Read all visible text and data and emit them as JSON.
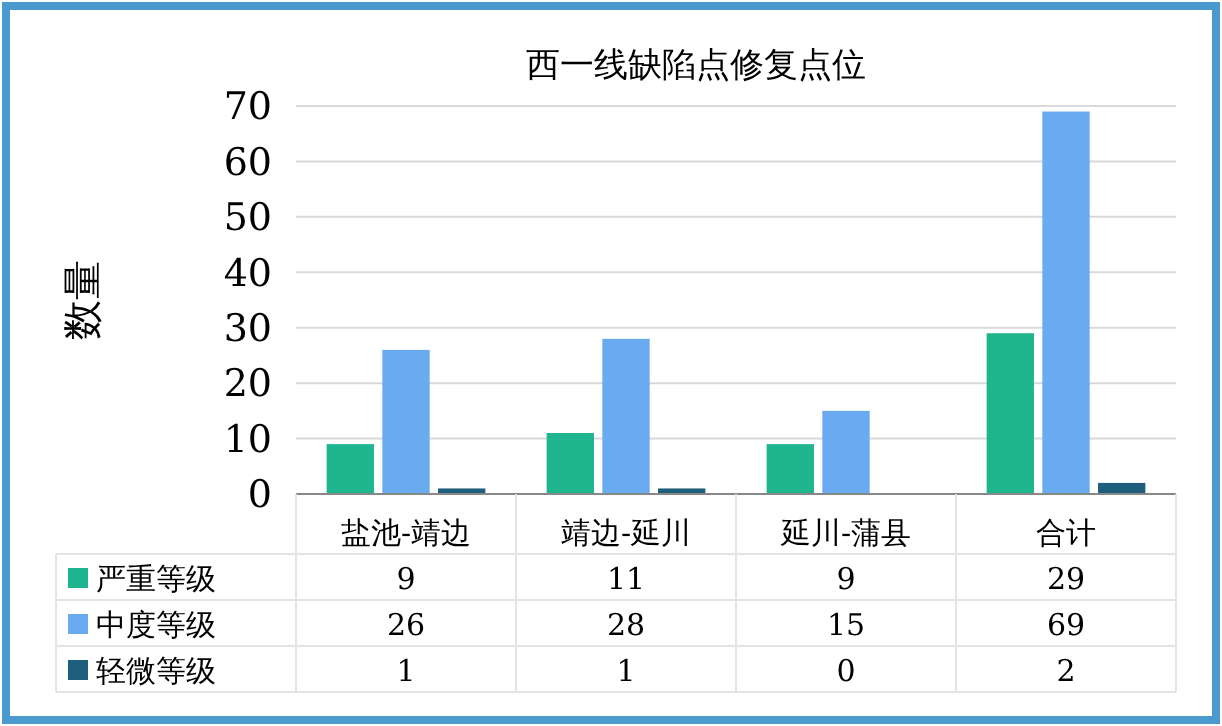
{
  "chart_data": {
    "type": "bar",
    "title": "西一线缺陷点修复点位",
    "ylabel": "数量",
    "categories": [
      "盐池-靖边",
      "靖边-延川",
      "延川-蒲县",
      "合计"
    ],
    "series": [
      {
        "name": "严重等级",
        "color": "#1fb58f",
        "values": [
          9,
          11,
          9,
          29
        ]
      },
      {
        "name": "中度等级",
        "color": "#6aaaf0",
        "values": [
          26,
          28,
          15,
          69
        ]
      },
      {
        "name": "轻微等级",
        "color": "#1e5f7e",
        "values": [
          1,
          1,
          0,
          2
        ]
      }
    ],
    "ylim": [
      0,
      70
    ],
    "yticks": [
      0,
      10,
      20,
      30,
      40,
      50,
      60,
      70
    ],
    "grid": "y",
    "data_labels": true,
    "legend": "bottom"
  }
}
